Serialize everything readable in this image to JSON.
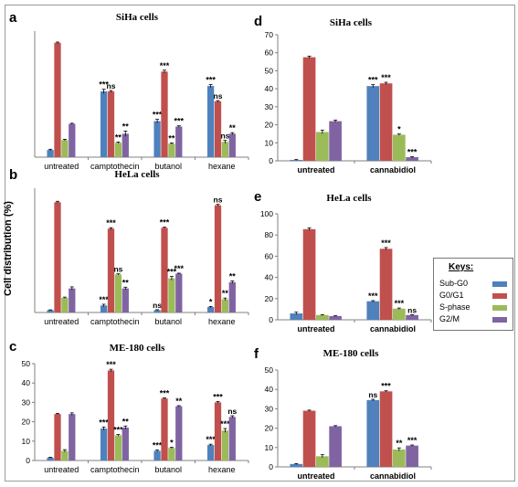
{
  "figure": {
    "ylabel": "Cell distribution (%)",
    "legend_title": "Keys:",
    "series_names": [
      "Sub-G0",
      "G0/G1",
      "S-phase",
      "G2/M"
    ],
    "colors": [
      "#4f81bd",
      "#c0504d",
      "#9bbb59",
      "#8064a2"
    ]
  },
  "chart_data": [
    {
      "panel_letter": "a",
      "title": "SiHa cells",
      "type": "bar",
      "categories": [
        "untreated",
        "camptothecin",
        "butanol",
        "hexane"
      ],
      "ylim": [
        0,
        70
      ],
      "ticks": [],
      "series": [
        {
          "name": "Sub-G0",
          "values": [
            4,
            36.5,
            20,
            39.5
          ],
          "errors": [
            0.4,
            1.2,
            1.0,
            0.8
          ],
          "sig": [
            "",
            "***",
            "***",
            "***"
          ]
        },
        {
          "name": "G0/G1",
          "values": [
            63.5,
            36.5,
            47.5,
            31
          ],
          "errors": [
            0.4,
            0.5,
            0.8,
            0.4
          ],
          "sig": [
            "",
            "ns",
            "***",
            "ns"
          ]
        },
        {
          "name": "S-phase",
          "values": [
            9.5,
            8,
            7.5,
            8.5
          ],
          "errors": [
            0.4,
            0.4,
            0.4,
            0.8
          ],
          "sig": [
            "",
            "**",
            "**",
            "ns"
          ]
        },
        {
          "name": "G2/M",
          "values": [
            18.5,
            13,
            17,
            13
          ],
          "errors": [
            0.3,
            1.5,
            0.4,
            0.6
          ],
          "sig": [
            "",
            "**",
            "***",
            "**"
          ]
        }
      ]
    },
    {
      "panel_letter": "b",
      "title": "HeLa cells",
      "type": "bar",
      "categories": [
        "untreated",
        "camptothecin",
        "butanol",
        "hexane"
      ],
      "ylim": [
        0,
        80
      ],
      "ticks": [],
      "series": [
        {
          "name": "Sub-G0",
          "values": [
            1.5,
            4.5,
            1.5,
            3.5
          ],
          "errors": [
            0.2,
            0.8,
            0.3,
            0.4
          ],
          "sig": [
            "",
            "***",
            "ns",
            "*"
          ]
        },
        {
          "name": "G0/G1",
          "values": [
            71,
            54,
            54.5,
            69
          ],
          "errors": [
            0.6,
            0.6,
            0.4,
            0.6
          ],
          "sig": [
            "",
            "***",
            "***",
            "ns"
          ]
        },
        {
          "name": "S-phase",
          "values": [
            9.5,
            24.5,
            22,
            8.5
          ],
          "errors": [
            0.4,
            0.4,
            1.2,
            0.8
          ],
          "sig": [
            "",
            "ns",
            "***",
            "**"
          ]
        },
        {
          "name": "G2/M",
          "values": [
            15.5,
            15.5,
            25,
            19.5
          ],
          "errors": [
            1.0,
            0.8,
            0.3,
            0.8
          ],
          "sig": [
            "",
            "**",
            "***",
            "**"
          ]
        }
      ]
    },
    {
      "panel_letter": "c",
      "title": "ME-180 cells",
      "type": "bar",
      "categories": [
        "untreated",
        "camptothecin",
        "butanol",
        "hexane"
      ],
      "ylim": [
        0,
        50
      ],
      "ticks": [
        0,
        10,
        20,
        30,
        40,
        50
      ],
      "series": [
        {
          "name": "Sub-G0",
          "values": [
            1.5,
            16.5,
            5,
            8
          ],
          "errors": [
            0.2,
            0.8,
            0.4,
            0.4
          ],
          "sig": [
            "",
            "***",
            "***",
            "***"
          ]
        },
        {
          "name": "G0/G1",
          "values": [
            24,
            46.5,
            32,
            30
          ],
          "errors": [
            0.3,
            0.6,
            0.3,
            0.4
          ],
          "sig": [
            "",
            "***",
            "***",
            "***"
          ]
        },
        {
          "name": "S-phase",
          "values": [
            5,
            13,
            6.5,
            15.5
          ],
          "errors": [
            0.6,
            0.4,
            0.3,
            1.0
          ],
          "sig": [
            "",
            "***",
            "*",
            "***"
          ]
        },
        {
          "name": "G2/M",
          "values": [
            24,
            17,
            28,
            22.5
          ],
          "errors": [
            0.6,
            0.8,
            0.3,
            0.6
          ],
          "sig": [
            "",
            "**",
            "**",
            "ns"
          ]
        }
      ]
    },
    {
      "panel_letter": "d",
      "title": "SiHa cells",
      "type": "bar",
      "categories": [
        "untreated",
        "cannabidiol"
      ],
      "ylim": [
        0,
        70
      ],
      "ticks": [
        0,
        10,
        20,
        30,
        40,
        50,
        60,
        70
      ],
      "series": [
        {
          "name": "Sub-G0",
          "values": [
            0.5,
            41.5
          ],
          "errors": [
            0.2,
            0.8
          ],
          "sig": [
            "",
            "***"
          ]
        },
        {
          "name": "G0/G1",
          "values": [
            57.5,
            43
          ],
          "errors": [
            0.6,
            0.6
          ],
          "sig": [
            "",
            "***"
          ]
        },
        {
          "name": "S-phase",
          "values": [
            16,
            14.5
          ],
          "errors": [
            1.0,
            0.4
          ],
          "sig": [
            "",
            "*"
          ]
        },
        {
          "name": "G2/M",
          "values": [
            22,
            2
          ],
          "errors": [
            0.6,
            0.3
          ],
          "sig": [
            "",
            "***"
          ]
        }
      ]
    },
    {
      "panel_letter": "e",
      "title": "HeLa cells",
      "type": "bar",
      "categories": [
        "untreated",
        "cannabidiol"
      ],
      "ylim": [
        0,
        100
      ],
      "ticks": [
        0,
        20,
        40,
        60,
        80,
        100
      ],
      "series": [
        {
          "name": "Sub-G0",
          "values": [
            6,
            17.5
          ],
          "errors": [
            1.2,
            0.6
          ],
          "sig": [
            "",
            "***"
          ]
        },
        {
          "name": "G0/G1",
          "values": [
            85.5,
            67
          ],
          "errors": [
            1.2,
            1.2
          ],
          "sig": [
            "",
            "***"
          ]
        },
        {
          "name": "S-phase",
          "values": [
            4.5,
            10.5
          ],
          "errors": [
            0.3,
            0.6
          ],
          "sig": [
            "",
            "***"
          ]
        },
        {
          "name": "G2/M",
          "values": [
            3.5,
            4.5
          ],
          "errors": [
            0.3,
            0.3
          ],
          "sig": [
            "",
            "ns"
          ]
        }
      ]
    },
    {
      "panel_letter": "f",
      "title": "ME-180 cells",
      "type": "bar",
      "categories": [
        "untreated",
        "cannabidiol"
      ],
      "ylim": [
        0,
        50
      ],
      "ticks": [
        0,
        10,
        20,
        30,
        40,
        50
      ],
      "series": [
        {
          "name": "Sub-G0",
          "values": [
            1.5,
            34.5
          ],
          "errors": [
            0.2,
            0.4
          ],
          "sig": [
            "",
            "ns"
          ]
        },
        {
          "name": "G0/G1",
          "values": [
            29,
            39
          ],
          "errors": [
            0.3,
            0.3
          ],
          "sig": [
            "",
            "***"
          ]
        },
        {
          "name": "S-phase",
          "values": [
            5.5,
            9
          ],
          "errors": [
            0.8,
            0.8
          ],
          "sig": [
            "",
            "**"
          ]
        },
        {
          "name": "G2/M",
          "values": [
            21,
            11
          ],
          "errors": [
            0.3,
            0.3
          ],
          "sig": [
            "",
            "***"
          ]
        }
      ]
    }
  ]
}
